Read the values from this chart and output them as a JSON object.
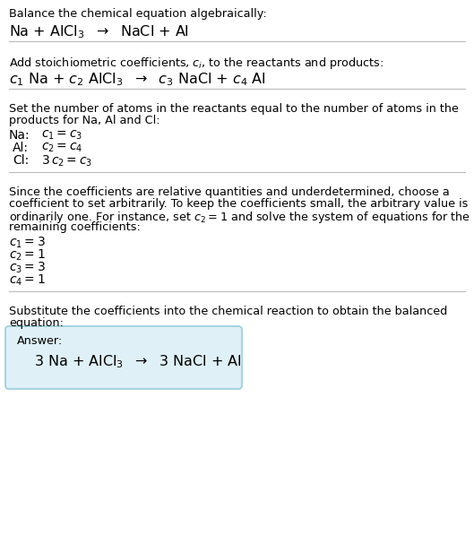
{
  "title_line1": "Balance the chemical equation algebraically:",
  "section2_header_line1": "Set the number of atoms in the reactants equal to the number of atoms in the",
  "section2_header_line2": "products for Na, Al and Cl:",
  "section3_header_line1": "Since the coefficients are relative quantities and underdetermined, choose a",
  "section3_header_line2": "coefficient to set arbitrarily. To keep the coefficients small, the arbitrary value is",
  "section3_header_line3": "ordinarily one. For instance, set $c_2 = 1$ and solve the system of equations for the",
  "section3_header_line4": "remaining coefficients:",
  "section3_values": [
    "$c_1 = 3$",
    "$c_2 = 1$",
    "$c_3 = 3$",
    "$c_4 = 1$"
  ],
  "section4_header_line1": "Substitute the coefficients into the chemical reaction to obtain the balanced",
  "section4_header_line2": "equation:",
  "answer_label": "Answer:",
  "bg_color": "#ffffff",
  "text_color": "#000000",
  "line_color": "#bbbbbb",
  "answer_box_facecolor": "#dff0f7",
  "answer_box_edgecolor": "#99ccdd"
}
